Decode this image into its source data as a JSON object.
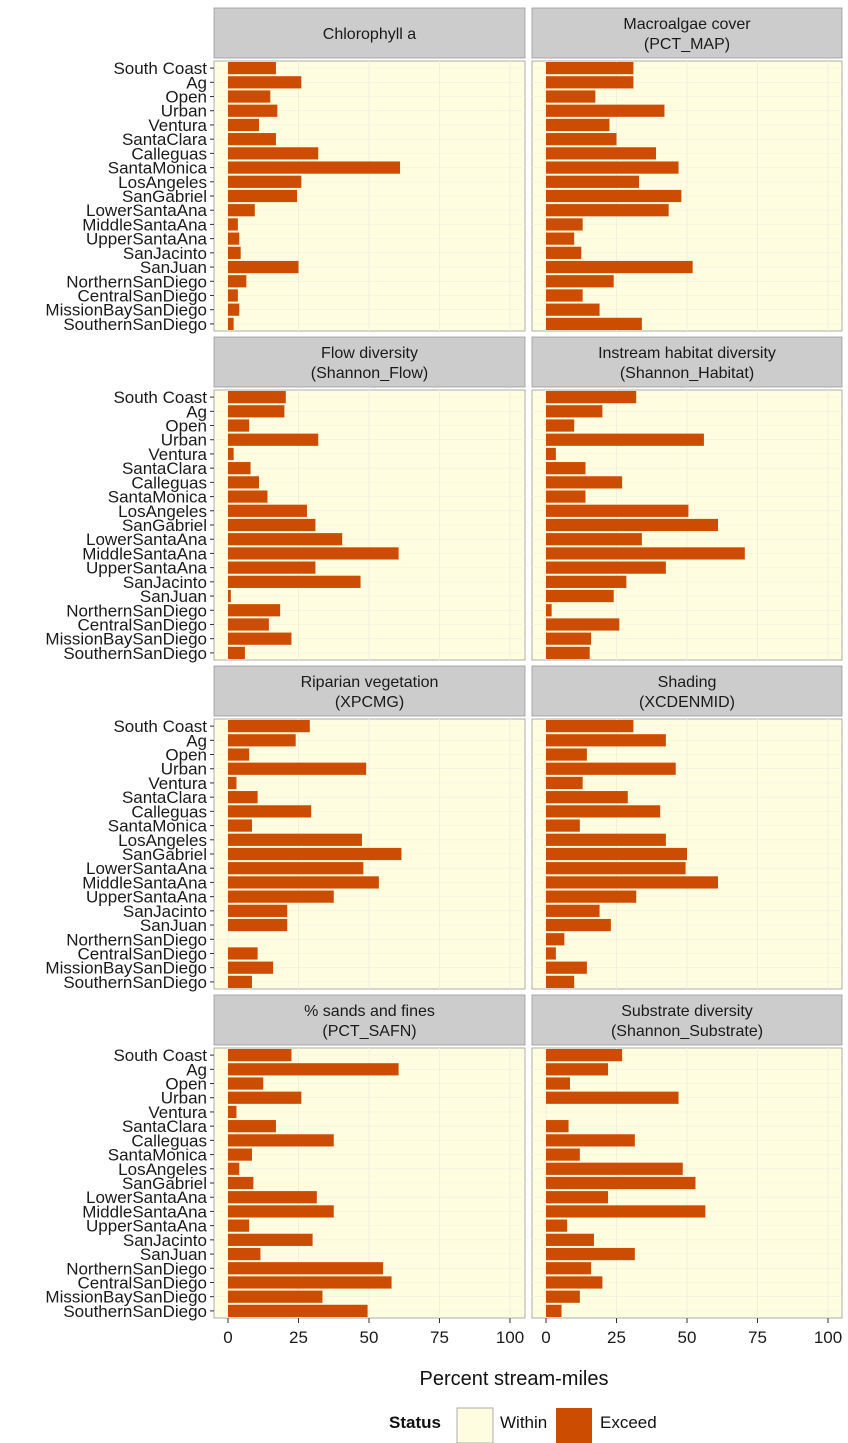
{
  "chart_data": {
    "type": "bar",
    "orientation": "horizontal",
    "layout": "faceted grid, 4 rows x 2 columns, shared axes",
    "xlabel": "Percent stream-miles",
    "xlim": [
      0,
      100
    ],
    "x_ticks": [
      0,
      25,
      50,
      75,
      100
    ],
    "categories": [
      "South Coast",
      "Ag",
      "Open",
      "Urban",
      "Ventura",
      "SantaClara",
      "Calleguas",
      "SantaMonica",
      "LosAngeles",
      "SanGabriel",
      "LowerSantaAna",
      "MiddleSantaAna",
      "UpperSantaAna",
      "SanJacinto",
      "SanJuan",
      "NorthernSanDiego",
      "CentralSanDiego",
      "MissionBaySanDiego",
      "SouthernSanDiego"
    ],
    "legend": {
      "title": "Status",
      "position": "bottom",
      "items": [
        {
          "label": "Within",
          "color": "#fefde0"
        },
        {
          "label": "Exceed",
          "color": "#cc4c02"
        }
      ]
    },
    "colors": {
      "within": "#fefde0",
      "exceed": "#cc4c02",
      "strip": "#cccccc",
      "panel_grid": "#f0f0e0"
    },
    "grid": true,
    "panels": [
      {
        "title_line1": "Chlorophyll a",
        "title_line2": "",
        "exceed": [
          17,
          26,
          15,
          17.5,
          11,
          17,
          32,
          61,
          26,
          24.5,
          9.5,
          3.5,
          4,
          4.5,
          25,
          6.5,
          3.5,
          4,
          2
        ]
      },
      {
        "title_line1": "Macroalgae cover",
        "title_line2": "(PCT_MAP)",
        "exceed": [
          31,
          31,
          17.5,
          42,
          22.5,
          25,
          39,
          47,
          33,
          48,
          43.5,
          13,
          10,
          12.5,
          52,
          24,
          13,
          19,
          34
        ]
      },
      {
        "title_line1": "Flow diversity",
        "title_line2": "(Shannon_Flow)",
        "exceed": [
          20.5,
          20,
          7.5,
          32,
          2,
          8,
          11,
          14,
          28,
          31,
          40.5,
          60.5,
          31,
          47,
          1,
          18.5,
          14.5,
          22.5,
          6
        ]
      },
      {
        "title_line1": "Instream habitat diversity",
        "title_line2": "(Shannon_Habitat)",
        "exceed": [
          32,
          20,
          10,
          56,
          3.5,
          14,
          27,
          14,
          50.5,
          61,
          34,
          70.5,
          42.5,
          28.5,
          24,
          2,
          26,
          16,
          15.5
        ]
      },
      {
        "title_line1": "Riparian vegetation",
        "title_line2": "(XPCMG)",
        "exceed": [
          29,
          24,
          7.5,
          49,
          3,
          10.5,
          29.5,
          8.5,
          47.5,
          61.5,
          48,
          53.5,
          37.5,
          21,
          21,
          0,
          10.5,
          16,
          8.5
        ]
      },
      {
        "title_line1": "Shading",
        "title_line2": "(XCDENMID)",
        "exceed": [
          31,
          42.5,
          14.5,
          46,
          13,
          29,
          40.5,
          12,
          42.5,
          50,
          49.5,
          61,
          32,
          19,
          23,
          6.5,
          3.5,
          14.5,
          10
        ]
      },
      {
        "title_line1": "% sands and fines",
        "title_line2": "(PCT_SAFN)",
        "exceed": [
          22.5,
          60.5,
          12.5,
          26,
          3,
          17,
          37.5,
          8.5,
          4,
          9,
          31.5,
          37.5,
          7.5,
          30,
          11.5,
          55,
          58,
          33.5,
          49.5
        ]
      },
      {
        "title_line1": "Substrate diversity",
        "title_line2": "(Shannon_Substrate)",
        "exceed": [
          27,
          22,
          8.5,
          47,
          0,
          8,
          31.5,
          12,
          48.5,
          53,
          22,
          56.5,
          7.5,
          17,
          31.5,
          16,
          20,
          12,
          5.5
        ]
      }
    ]
  }
}
